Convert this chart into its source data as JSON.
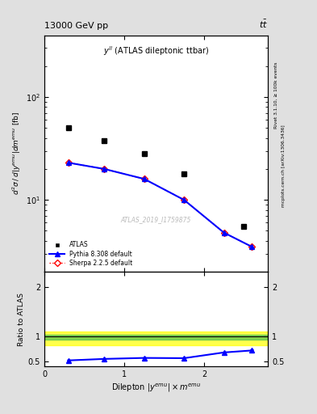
{
  "title_top": "13000 GeV pp",
  "title_top_right": "tt",
  "main_subtitle": "y^{ll} (ATLAS dileptonic ttbar)",
  "watermark": "ATLAS_2019_I1759875",
  "right_label_top": "Rivet 3.1.10, ≥ 100k events",
  "right_label_bottom": "mcplots.cern.ch [arXiv:1306.3436]",
  "atlas_x": [
    0.3,
    0.75,
    1.25,
    1.75,
    2.5
  ],
  "atlas_y": [
    50,
    38,
    28,
    18,
    5.5
  ],
  "pythia_x": [
    0.3,
    0.75,
    1.25,
    1.75,
    2.25,
    2.6
  ],
  "pythia_y": [
    23,
    20,
    16,
    10,
    4.8,
    3.5
  ],
  "sherpa_x": [
    0.3,
    0.75,
    1.25,
    1.75,
    2.25,
    2.6
  ],
  "sherpa_y": [
    23,
    20,
    16,
    10,
    4.8,
    3.5
  ],
  "ratio_pythia_x": [
    0.3,
    0.75,
    1.25,
    1.75,
    2.25,
    2.6
  ],
  "ratio_pythia_y": [
    0.52,
    0.55,
    0.57,
    0.565,
    0.68,
    0.72
  ],
  "atlas_color": "black",
  "pythia_color": "blue",
  "sherpa_color": "red",
  "band_green_low": 0.93,
  "band_green_high": 1.04,
  "band_yellow_low": 0.82,
  "band_yellow_high": 1.1,
  "xlim": [
    0,
    2.8
  ],
  "ylim_main": [
    2,
    400
  ],
  "ylim_ratio": [
    0.4,
    2.3
  ],
  "background_color": "#e0e0e0"
}
